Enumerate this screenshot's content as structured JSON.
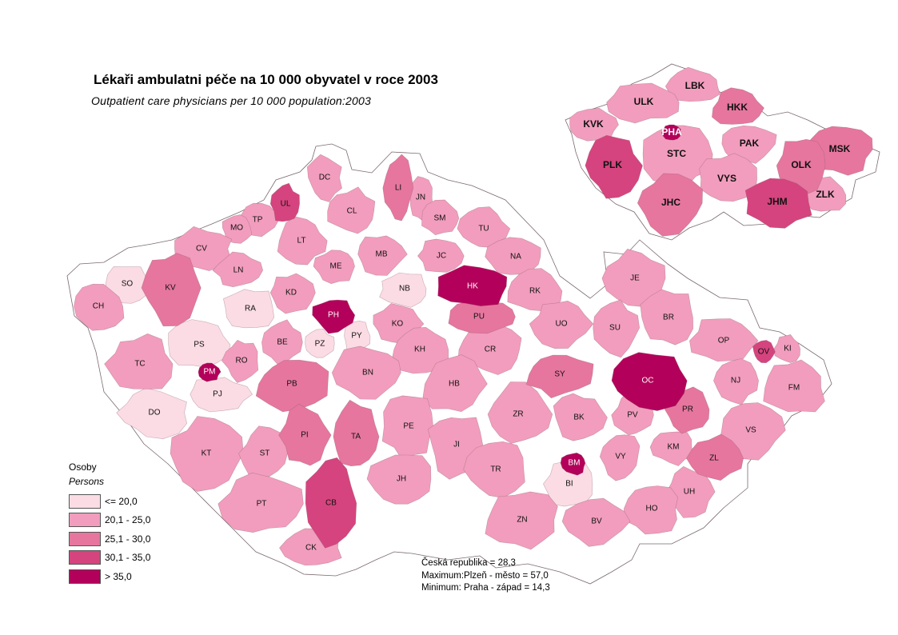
{
  "title": "Lékaři ambulatni péče na 10 000 obyvatel v roce 2003",
  "subtitle": "Outpatient care physicians per 10 000 population:2003",
  "legend": {
    "heading_cz": "Osoby",
    "heading_en": "Persons",
    "classes": [
      {
        "label": "<= 20,0",
        "color": "#fbdce4"
      },
      {
        "label": "20,1 - 25,0",
        "color": "#f29dbd"
      },
      {
        "label": "25,1 - 30,0",
        "color": "#e6769e"
      },
      {
        "label": "30,1 - 35,0",
        "color": "#d5447e"
      },
      {
        "label": "> 35,0",
        "color": "#b3005a"
      }
    ]
  },
  "stats": {
    "country": "Česká republika = 28,3",
    "maximum": "Maximum:Plzeň - město  = 57,0",
    "minimum": "Minimum: Praha - západ  = 14,3"
  },
  "districts": [
    {
      "code": "DC",
      "class": 1
    },
    {
      "code": "UL",
      "class": 3
    },
    {
      "code": "LI",
      "class": 2
    },
    {
      "code": "JN",
      "class": 1
    },
    {
      "code": "CL",
      "class": 1
    },
    {
      "code": "TP",
      "class": 1
    },
    {
      "code": "MO",
      "class": 1
    },
    {
      "code": "SM",
      "class": 1
    },
    {
      "code": "TU",
      "class": 1
    },
    {
      "code": "CV",
      "class": 1
    },
    {
      "code": "LT",
      "class": 1
    },
    {
      "code": "MB",
      "class": 1
    },
    {
      "code": "LN",
      "class": 1
    },
    {
      "code": "ME",
      "class": 1
    },
    {
      "code": "JC",
      "class": 1
    },
    {
      "code": "NA",
      "class": 1
    },
    {
      "code": "SO",
      "class": 0
    },
    {
      "code": "KV",
      "class": 2
    },
    {
      "code": "CH",
      "class": 1
    },
    {
      "code": "KD",
      "class": 1
    },
    {
      "code": "NB",
      "class": 0
    },
    {
      "code": "HK",
      "class": 4
    },
    {
      "code": "RK",
      "class": 1
    },
    {
      "code": "JE",
      "class": 1
    },
    {
      "code": "RA",
      "class": 0
    },
    {
      "code": "PH",
      "class": 4
    },
    {
      "code": "PU",
      "class": 2
    },
    {
      "code": "UO",
      "class": 1
    },
    {
      "code": "SU",
      "class": 1
    },
    {
      "code": "BR",
      "class": 1
    },
    {
      "code": "KO",
      "class": 1
    },
    {
      "code": "PS",
      "class": 0
    },
    {
      "code": "PZ",
      "class": 0
    },
    {
      "code": "PY",
      "class": 0
    },
    {
      "code": "BE",
      "class": 1
    },
    {
      "code": "RO",
      "class": 1
    },
    {
      "code": "TC",
      "class": 1
    },
    {
      "code": "PM",
      "class": 4
    },
    {
      "code": "KH",
      "class": 1
    },
    {
      "code": "CR",
      "class": 1
    },
    {
      "code": "SY",
      "class": 2
    },
    {
      "code": "OP",
      "class": 1
    },
    {
      "code": "OV",
      "class": 3
    },
    {
      "code": "KI",
      "class": 1
    },
    {
      "code": "PB",
      "class": 2
    },
    {
      "code": "BN",
      "class": 1
    },
    {
      "code": "HB",
      "class": 1
    },
    {
      "code": "OC",
      "class": 4
    },
    {
      "code": "NJ",
      "class": 1
    },
    {
      "code": "FM",
      "class": 1
    },
    {
      "code": "PJ",
      "class": 0
    },
    {
      "code": "DO",
      "class": 0
    },
    {
      "code": "PR",
      "class": 2
    },
    {
      "code": "ZR",
      "class": 1
    },
    {
      "code": "BK",
      "class": 1
    },
    {
      "code": "PV",
      "class": 1
    },
    {
      "code": "PE",
      "class": 1
    },
    {
      "code": "PI",
      "class": 2
    },
    {
      "code": "TA",
      "class": 2
    },
    {
      "code": "VS",
      "class": 1
    },
    {
      "code": "KM",
      "class": 1
    },
    {
      "code": "JI",
      "class": 1
    },
    {
      "code": "KT",
      "class": 1
    },
    {
      "code": "ST",
      "class": 1
    },
    {
      "code": "BM",
      "class": 4
    },
    {
      "code": "VY",
      "class": 1
    },
    {
      "code": "ZL",
      "class": 2
    },
    {
      "code": "TR",
      "class": 1
    },
    {
      "code": "JH",
      "class": 1
    },
    {
      "code": "BI",
      "class": 0
    },
    {
      "code": "UH",
      "class": 1
    },
    {
      "code": "PT",
      "class": 1
    },
    {
      "code": "CB",
      "class": 3
    },
    {
      "code": "HO",
      "class": 1
    },
    {
      "code": "ZN",
      "class": 1
    },
    {
      "code": "BV",
      "class": 1
    },
    {
      "code": "CK",
      "class": 1
    }
  ],
  "regions": [
    {
      "code": "LBK",
      "class": 1
    },
    {
      "code": "ULK",
      "class": 1
    },
    {
      "code": "HKK",
      "class": 2
    },
    {
      "code": "KVK",
      "class": 1
    },
    {
      "code": "PHA",
      "class": 4
    },
    {
      "code": "MSK",
      "class": 2
    },
    {
      "code": "PAK",
      "class": 1
    },
    {
      "code": "STC",
      "class": 1
    },
    {
      "code": "PLK",
      "class": 3
    },
    {
      "code": "OLK",
      "class": 2
    },
    {
      "code": "VYS",
      "class": 1
    },
    {
      "code": "ZLK",
      "class": 1
    },
    {
      "code": "JHC",
      "class": 2
    },
    {
      "code": "JHM",
      "class": 3
    }
  ]
}
